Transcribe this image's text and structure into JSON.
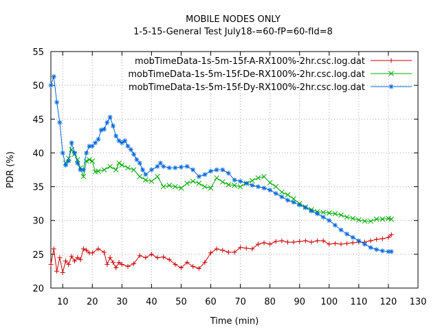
{
  "chart_data": {
    "type": "line",
    "title": "MOBILE NODES ONLY",
    "subtitle": "1-5-15-General Test July18-=60-fP=60-fId=8",
    "xlabel": "Time (min)",
    "ylabel": "PDR (%)",
    "xlim": [
      6,
      130
    ],
    "ylim": [
      20,
      55
    ],
    "xticks": [
      10,
      20,
      30,
      40,
      50,
      60,
      70,
      80,
      90,
      100,
      110,
      120,
      130
    ],
    "yticks": [
      20,
      25,
      30,
      35,
      40,
      45,
      50,
      55
    ],
    "grid": true,
    "legend_position": "top-right",
    "series": [
      {
        "name": "mobTimeData-1s-5m-15f-A-RX100%-2hr.csc.log.dat",
        "color": "#cc0000",
        "marker": "plus",
        "x": [
          6,
          7,
          8,
          9,
          10,
          11,
          12,
          13,
          14,
          15,
          16,
          17,
          18,
          19,
          20,
          22,
          24,
          25,
          26,
          27,
          28,
          29,
          30,
          32,
          34,
          36,
          38,
          40,
          42,
          44,
          46,
          48,
          50,
          52,
          54,
          56,
          58,
          60,
          62,
          64,
          66,
          68,
          70,
          72,
          74,
          76,
          78,
          80,
          82,
          84,
          86,
          88,
          90,
          92,
          94,
          96,
          98,
          100,
          102,
          104,
          106,
          108,
          110,
          112,
          114,
          116,
          118,
          120,
          121
        ],
        "y": [
          23.5,
          25.8,
          22.5,
          24.5,
          22.3,
          24.0,
          23.5,
          24.7,
          24.0,
          24.5,
          24.2,
          25.8,
          25.6,
          25.2,
          25.2,
          25.8,
          25.3,
          23.5,
          24.5,
          23.8,
          23.0,
          23.8,
          23.5,
          23.2,
          23.6,
          24.8,
          24.5,
          25.0,
          24.5,
          24.6,
          24.2,
          23.5,
          23.0,
          23.8,
          23.2,
          22.9,
          23.8,
          25.2,
          25.8,
          25.6,
          25.3,
          25.3,
          26.0,
          25.9,
          25.8,
          26.5,
          26.7,
          26.5,
          26.9,
          27.0,
          26.8,
          26.8,
          26.9,
          27.0,
          26.8,
          27.0,
          27.0,
          26.5,
          26.6,
          26.5,
          26.6,
          26.7,
          26.8,
          26.8,
          27.0,
          27.2,
          27.3,
          27.5,
          27.9
        ]
      },
      {
        "name": "mobTimeData-1s-5m-15f-De-RX100%-2hr.csc.log.dat",
        "color": "#00aa00",
        "marker": "cross",
        "x": [
          11,
          12,
          13,
          14,
          15,
          16,
          17,
          18,
          19,
          20,
          21,
          22,
          24,
          26,
          28,
          29,
          30,
          32,
          34,
          36,
          38,
          40,
          42,
          44,
          46,
          48,
          50,
          52,
          54,
          56,
          58,
          60,
          62,
          64,
          66,
          68,
          70,
          72,
          74,
          76,
          78,
          80,
          82,
          84,
          86,
          88,
          90,
          92,
          94,
          96,
          98,
          100,
          102,
          104,
          106,
          108,
          110,
          112,
          114,
          116,
          118,
          120,
          121
        ],
        "y": [
          38.5,
          39.2,
          40.5,
          39.8,
          39.0,
          37.8,
          36.5,
          38.8,
          39.0,
          38.8,
          37.2,
          37.3,
          37.5,
          38.0,
          37.5,
          38.5,
          38.2,
          37.8,
          37.5,
          36.5,
          36.0,
          35.8,
          36.5,
          35.0,
          35.2,
          35.0,
          34.8,
          35.5,
          35.8,
          35.5,
          35.0,
          34.8,
          36.3,
          35.7,
          35.3,
          35.2,
          35.0,
          35.5,
          35.9,
          36.3,
          36.5,
          35.6,
          35.0,
          34.2,
          33.8,
          33.2,
          32.5,
          32.0,
          31.6,
          31.3,
          31.2,
          31.1,
          31.0,
          30.8,
          30.5,
          30.3,
          30.1,
          29.9,
          29.9,
          30.2,
          30.2,
          30.3,
          30.2
        ]
      },
      {
        "name": "mobTimeData-1s-5m-15f-Dy-RX100%-2hr.csc.log.dat",
        "color": "#0066dd",
        "marker": "star",
        "x": [
          6,
          7,
          8,
          9,
          10,
          11,
          12,
          13,
          14,
          15,
          16,
          17,
          18,
          19,
          20,
          21,
          22,
          23,
          24,
          25,
          26,
          27,
          28,
          29,
          30,
          31,
          32,
          33,
          34,
          35,
          36,
          37,
          38,
          40,
          42,
          43,
          44,
          46,
          48,
          50,
          52,
          54,
          56,
          58,
          60,
          62,
          64,
          66,
          68,
          70,
          72,
          74,
          76,
          78,
          80,
          82,
          84,
          86,
          88,
          90,
          92,
          94,
          96,
          98,
          100,
          102,
          104,
          106,
          108,
          110,
          112,
          114,
          116,
          118,
          120,
          121
        ],
        "y": [
          50.0,
          51.3,
          47.5,
          44.5,
          40.0,
          38.2,
          38.8,
          41.5,
          40.0,
          38.5,
          37.5,
          37.5,
          40.0,
          41.0,
          41.0,
          41.5,
          42.0,
          43.4,
          43.5,
          44.5,
          45.3,
          44.0,
          42.5,
          41.8,
          41.5,
          41.8,
          41.0,
          40.5,
          39.8,
          39.0,
          38.5,
          37.5,
          36.8,
          37.5,
          38.0,
          38.5,
          38.0,
          37.8,
          37.8,
          37.9,
          38.0,
          37.5,
          36.5,
          36.8,
          37.3,
          37.5,
          37.5,
          37.0,
          36.0,
          35.8,
          35.5,
          35.2,
          35.0,
          34.8,
          34.5,
          34.0,
          33.5,
          33.0,
          32.7,
          32.3,
          31.9,
          31.4,
          31.0,
          30.5,
          30.0,
          29.3,
          28.6,
          28.0,
          27.5,
          27.0,
          26.5,
          26.0,
          25.7,
          25.5,
          25.4,
          25.4
        ]
      }
    ]
  }
}
